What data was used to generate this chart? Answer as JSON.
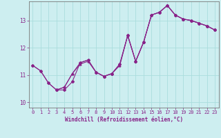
{
  "xlabel": "Windchill (Refroidissement éolien,°C)",
  "bg_color": "#cdeef0",
  "line_color": "#882288",
  "grid_color": "#aadddd",
  "xlim": [
    -0.5,
    23.5
  ],
  "ylim": [
    9.8,
    13.7
  ],
  "yticks": [
    10,
    11,
    12,
    13
  ],
  "xticks": [
    0,
    1,
    2,
    3,
    4,
    5,
    6,
    7,
    8,
    9,
    10,
    11,
    12,
    13,
    14,
    15,
    16,
    17,
    18,
    19,
    20,
    21,
    22,
    23
  ],
  "line1_x": [
    0,
    1,
    2,
    3,
    4,
    5,
    6,
    7,
    8,
    9,
    10,
    11,
    12,
    13,
    14,
    15,
    16,
    17,
    18,
    19,
    20,
    21,
    22,
    23
  ],
  "line1_y": [
    11.35,
    11.15,
    10.7,
    10.45,
    10.45,
    10.75,
    11.45,
    11.55,
    11.1,
    10.95,
    11.05,
    11.4,
    12.45,
    11.5,
    12.2,
    13.2,
    13.3,
    13.55,
    13.2,
    13.05,
    13.0,
    12.9,
    12.8,
    12.65
  ],
  "line2_x": [
    0,
    1,
    2,
    3,
    4,
    5,
    6,
    7,
    8,
    9,
    10,
    11,
    12,
    13,
    14,
    15,
    16,
    17,
    18,
    19,
    20,
    21,
    22,
    23
  ],
  "line2_y": [
    11.35,
    11.15,
    10.7,
    10.45,
    10.55,
    11.05,
    11.45,
    11.55,
    11.1,
    10.95,
    11.05,
    11.4,
    12.45,
    11.5,
    12.2,
    13.2,
    13.3,
    13.55,
    13.2,
    13.05,
    13.0,
    12.9,
    12.8,
    12.65
  ],
  "line3_x": [
    3,
    4,
    5,
    6,
    7,
    8,
    9,
    10,
    11,
    12,
    13,
    14,
    15,
    16,
    17,
    18,
    19,
    20,
    21,
    22,
    23
  ],
  "line3_y": [
    10.45,
    10.55,
    11.05,
    11.4,
    11.5,
    11.1,
    10.95,
    11.05,
    11.35,
    12.45,
    11.5,
    12.2,
    13.2,
    13.3,
    13.55,
    13.2,
    13.05,
    13.0,
    12.9,
    12.8,
    12.65
  ],
  "marker1": "D",
  "marker2": "+",
  "marker3": "^",
  "lw": 0.8,
  "ms1": 2.0,
  "ms2": 3.5,
  "ms3": 2.0,
  "tick_fs": 5.0,
  "xlabel_fs": 5.5
}
